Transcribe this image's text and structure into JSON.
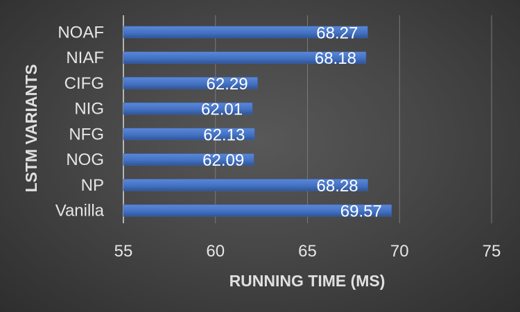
{
  "chart_data": {
    "type": "bar",
    "orientation": "horizontal",
    "categories": [
      "NOAF",
      "NIAF",
      "CIFG",
      "NIG",
      "NFG",
      "NOG",
      "NP",
      "Vanilla"
    ],
    "values": [
      68.27,
      68.18,
      62.29,
      62.01,
      62.13,
      62.09,
      68.28,
      69.57
    ],
    "data_labels": [
      "68.27",
      "68.18",
      "62.29",
      "62.01",
      "62.13",
      "62.09",
      "68.28",
      "69.57"
    ],
    "xlabel": "RUNNING TIME (MS)",
    "ylabel": "LSTM VARIANTS",
    "xlim": [
      55,
      75
    ],
    "xticks": [
      "55",
      "60",
      "65",
      "70",
      "75"
    ],
    "grid": "vertical",
    "legend": "none",
    "colors": {
      "bar": "#4472c4",
      "bar_light": "#5b87d6",
      "background": "#474747",
      "grid": "#7a7a7a"
    }
  }
}
